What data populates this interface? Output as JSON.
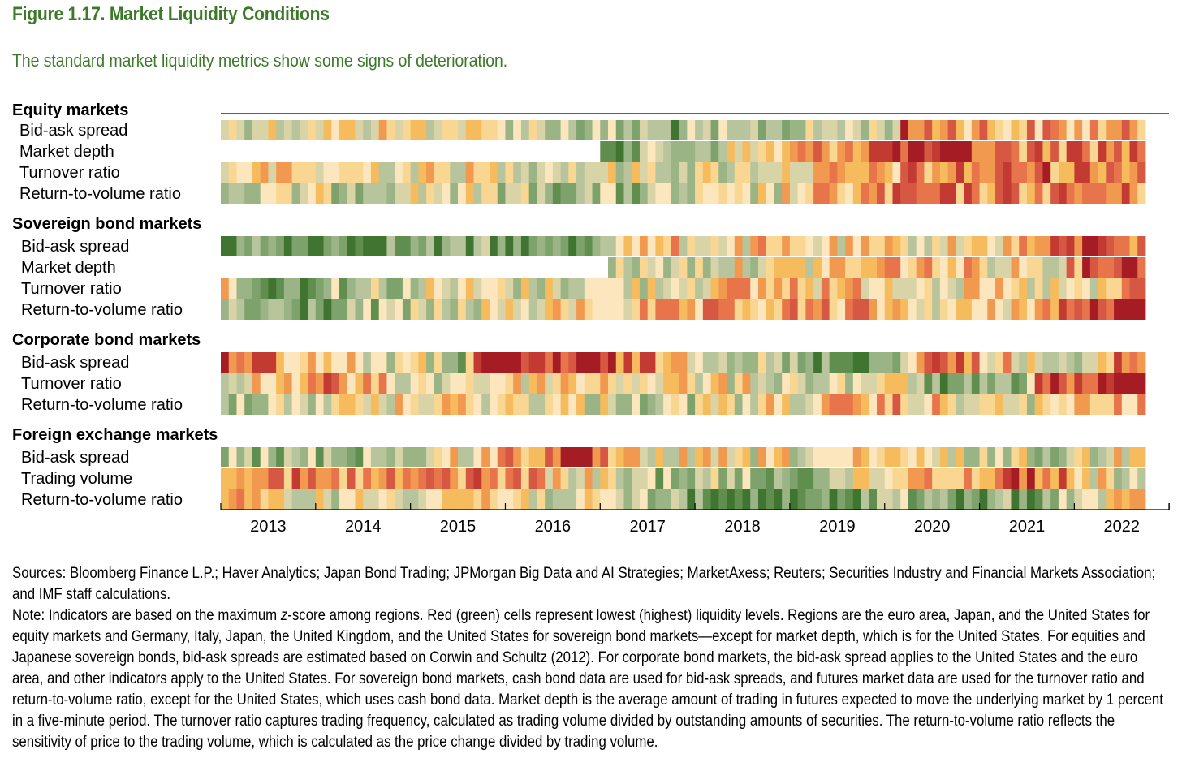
{
  "title": "Figure 1.17. Market Liquidity Conditions",
  "subtitle": "The standard market liquidity metrics show some signs of deterioration.",
  "colors": {
    "title": "#3c7a2a",
    "scale": [
      "#a51c24",
      "#c33a32",
      "#d65843",
      "#e8744b",
      "#f29950",
      "#f6bb5c",
      "#f9d792",
      "#fbe6bd",
      "#d9d4a8",
      "#b8c49b",
      "#9ab486",
      "#7ea26c",
      "#608e4f",
      "#3f7530"
    ]
  },
  "chart_data": {
    "type": "heatmap",
    "title": "Market Liquidity Conditions",
    "x_axis": {
      "years": [
        "2013",
        "2014",
        "2015",
        "2016",
        "2017",
        "2018",
        "2019",
        "2020",
        "2021",
        "2022"
      ],
      "periods": 117,
      "unit": "monthly"
    },
    "value_scale": {
      "min": -1,
      "max": 1,
      "low_label": "Red = lowest liquidity",
      "high_label": "Green = highest liquidity"
    },
    "groups": [
      {
        "name": "Equity markets",
        "rows": [
          {
            "name": "Bid-ask spread",
            "start": 0,
            "profile": [
              [
                0,
                0.05
              ],
              [
                28,
                -0.05
              ],
              [
                50,
                0.45
              ],
              [
                62,
                0.6
              ],
              [
                85,
                0.1
              ],
              [
                86,
                -0.6
              ],
              [
                100,
                -0.25
              ],
              [
                116,
                -0.3
              ]
            ]
          },
          {
            "name": "Market depth",
            "start": 48,
            "profile": [
              [
                48,
                0.55
              ],
              [
                60,
                0.35
              ],
              [
                75,
                -0.35
              ],
              [
                86,
                -0.9
              ],
              [
                98,
                -0.5
              ],
              [
                116,
                -0.6
              ]
            ]
          },
          {
            "name": "Turnover ratio",
            "start": 0,
            "profile": [
              [
                0,
                -0.05
              ],
              [
                40,
                0.05
              ],
              [
                60,
                0.2
              ],
              [
                82,
                -0.2
              ],
              [
                86,
                -0.35
              ],
              [
                100,
                -0.55
              ],
              [
                116,
                -0.6
              ]
            ]
          },
          {
            "name": "Return-to-volume ratio",
            "start": 0,
            "profile": [
              [
                0,
                0.4
              ],
              [
                25,
                0.1
              ],
              [
                50,
                0.5
              ],
              [
                65,
                0.3
              ],
              [
                80,
                -0.3
              ],
              [
                88,
                -0.5
              ],
              [
                116,
                -0.45
              ]
            ]
          }
        ]
      },
      {
        "name": "Sovereign bond markets",
        "rows": [
          {
            "name": "Bid-ask spread",
            "start": 0,
            "profile": [
              [
                0,
                0.7
              ],
              [
                45,
                0.75
              ],
              [
                50,
                -0.1
              ],
              [
                85,
                0.05
              ],
              [
                100,
                -0.2
              ],
              [
                112,
                -0.9
              ],
              [
                116,
                -0.4
              ]
            ]
          },
          {
            "name": "Market depth",
            "start": 49,
            "profile": [
              [
                49,
                0.25
              ],
              [
                70,
                0.05
              ],
              [
                85,
                -0.3
              ],
              [
                105,
                0.0
              ],
              [
                110,
                -0.8
              ],
              [
                116,
                -0.9
              ]
            ]
          },
          {
            "name": "Turnover ratio",
            "start": 0,
            "profile": [
              [
                0,
                -0.5
              ],
              [
                3,
                0.8
              ],
              [
                20,
                0.25
              ],
              [
                50,
                0.15
              ],
              [
                70,
                -0.3
              ],
              [
                100,
                0.1
              ],
              [
                112,
                0.2
              ],
              [
                116,
                -0.9
              ]
            ]
          },
          {
            "name": "Return-to-volume ratio",
            "start": 0,
            "profile": [
              [
                0,
                0.5
              ],
              [
                10,
                0.7
              ],
              [
                25,
                0.35
              ],
              [
                48,
                -0.1
              ],
              [
                80,
                -0.3
              ],
              [
                95,
                0.1
              ],
              [
                110,
                -0.75
              ],
              [
                116,
                -0.9
              ]
            ]
          }
        ]
      },
      {
        "name": "Corporate bond markets",
        "rows": [
          {
            "name": "Bid-ask spread",
            "start": 0,
            "profile": [
              [
                0,
                -0.9
              ],
              [
                10,
                -0.2
              ],
              [
                30,
                0.4
              ],
              [
                32,
                -0.7
              ],
              [
                48,
                -0.75
              ],
              [
                60,
                -0.1
              ],
              [
                75,
                0.8
              ],
              [
                85,
                0.55
              ],
              [
                88,
                -0.7
              ],
              [
                95,
                -0.4
              ],
              [
                110,
                0.7
              ],
              [
                112,
                -0.5
              ],
              [
                116,
                -0.6
              ]
            ]
          },
          {
            "name": "Turnover ratio",
            "start": 0,
            "profile": [
              [
                0,
                0.3
              ],
              [
                12,
                -0.5
              ],
              [
                25,
                0.2
              ],
              [
                45,
                -0.2
              ],
              [
                75,
                0.25
              ],
              [
                87,
                0.05
              ],
              [
                90,
                0.8
              ],
              [
                100,
                0.75
              ],
              [
                103,
                -0.6
              ],
              [
                116,
                -0.9
              ]
            ]
          },
          {
            "name": "Return-to-volume ratio",
            "start": 0,
            "profile": [
              [
                0,
                0.25
              ],
              [
                30,
                -0.1
              ],
              [
                55,
                0.3
              ],
              [
                85,
                -0.2
              ],
              [
                100,
                0.2
              ],
              [
                116,
                -0.3
              ]
            ]
          }
        ]
      },
      {
        "name": "Foreign exchange markets",
        "rows": [
          {
            "name": "Bid-ask spread",
            "start": 0,
            "profile": [
              [
                0,
                0.5
              ],
              [
                25,
                0.35
              ],
              [
                35,
                -0.3
              ],
              [
                46,
                -0.9
              ],
              [
                50,
                0.1
              ],
              [
                72,
                0.1
              ],
              [
                85,
                0.05
              ],
              [
                105,
                0.3
              ],
              [
                116,
                -0.1
              ]
            ]
          },
          {
            "name": "Trading volume",
            "start": 0,
            "profile": [
              [
                0,
                -0.7
              ],
              [
                15,
                -0.3
              ],
              [
                35,
                -0.5
              ],
              [
                50,
                0.3
              ],
              [
                72,
                0.55
              ],
              [
                80,
                0.2
              ],
              [
                88,
                -0.4
              ],
              [
                95,
                -0.3
              ],
              [
                102,
                -0.85
              ],
              [
                110,
                0.05
              ],
              [
                116,
                0.2
              ]
            ]
          },
          {
            "name": "Return-to-volume ratio",
            "start": 0,
            "profile": [
              [
                0,
                -0.2
              ],
              [
                15,
                0.2
              ],
              [
                30,
                -0.25
              ],
              [
                45,
                0.25
              ],
              [
                60,
                0.6
              ],
              [
                62,
                0.95
              ],
              [
                78,
                0.9
              ],
              [
                85,
                0.2
              ],
              [
                88,
                0.8
              ],
              [
                100,
                0.7
              ],
              [
                116,
                -0.1
              ]
            ]
          }
        ]
      }
    ]
  },
  "notes": {
    "sources": "Sources: Bloomberg Finance L.P.; Haver Analytics; Japan Bond Trading; JPMorgan Big Data and AI Strategies; MarketAxess; Reuters; Securities Industry and Financial Markets Association; and IMF staff calculations.",
    "note_prefix": "Note: Indicators are based on the maximum ",
    "note_italic": "z",
    "note_body": "-score among regions. Red (green) cells represent lowest (highest) liquidity levels. Regions are the euro area, Japan, and the United States for equity markets and Germany, Italy, Japan, the United Kingdom, and the United States for sovereign bond markets—except for market depth, which is for the United States. For equities and Japanese sovereign bonds, bid-ask spreads are estimated based on Corwin and Schultz (2012). For corporate bond markets, the bid-ask spread applies to the United States and the euro area, and other indicators apply to the United States. For sovereign bond markets, cash bond data are used for bid-ask spreads, and futures market data are used for the turnover ratio and return-to-volume ratio, except for the United States, which uses cash bond data. Market depth is the average amount of trading in futures expected to move the underlying market by 1 percent in a five-minute period. The turnover ratio captures trading frequency, calculated as trading volume divided by outstanding amounts of securities. The return-to-volume ratio reflects the sensitivity of price to the trading volume, which is calculated as the price change divided by trading volume."
  }
}
